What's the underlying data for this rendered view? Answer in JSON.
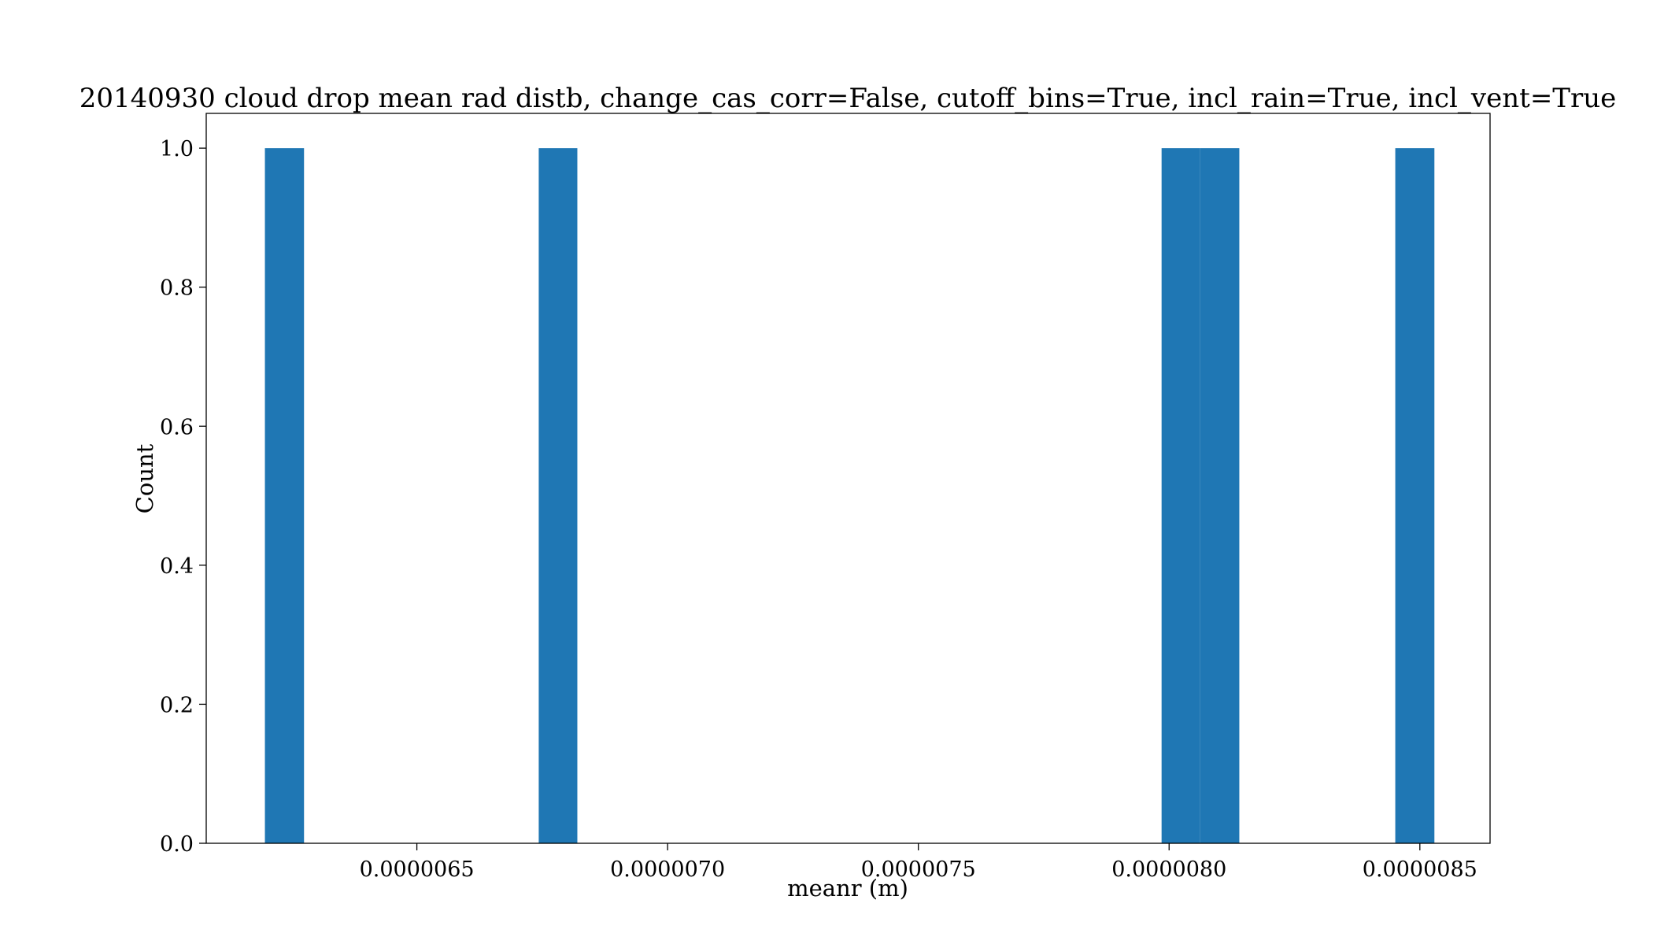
{
  "chart_data": {
    "type": "bar",
    "title": "20140930 cloud drop mean rad distb, change_cas_corr=False, cutoff_bins=True, incl_rain=True, incl_vent=True",
    "xlabel": "meanr (m)",
    "ylabel": "Count",
    "xlim": [
      6.08e-06,
      8.64e-06
    ],
    "ylim": [
      0,
      1.05
    ],
    "grid": false,
    "legend": "none",
    "bar_color": "#1f77b4",
    "x_ticks": [
      {
        "value": 6.5e-06,
        "label": "0.0000065"
      },
      {
        "value": 7e-06,
        "label": "0.0000070"
      },
      {
        "value": 7.5e-06,
        "label": "0.0000075"
      },
      {
        "value": 8e-06,
        "label": "0.0000080"
      },
      {
        "value": 8.5e-06,
        "label": "0.0000085"
      }
    ],
    "y_ticks": [
      {
        "value": 0.0,
        "label": "0.0"
      },
      {
        "value": 0.2,
        "label": "0.2"
      },
      {
        "value": 0.4,
        "label": "0.4"
      },
      {
        "value": 0.6,
        "label": "0.6"
      },
      {
        "value": 0.8,
        "label": "0.8"
      },
      {
        "value": 1.0,
        "label": "1.0"
      }
    ],
    "bins": [
      {
        "x0": 6.197e-06,
        "x1": 6.275e-06,
        "count": 1
      },
      {
        "x0": 6.743e-06,
        "x1": 6.82e-06,
        "count": 1
      },
      {
        "x0": 7.985e-06,
        "x1": 8.062e-06,
        "count": 1
      },
      {
        "x0": 8.062e-06,
        "x1": 8.14e-06,
        "count": 1
      },
      {
        "x0": 8.451e-06,
        "x1": 8.529e-06,
        "count": 1
      }
    ]
  }
}
